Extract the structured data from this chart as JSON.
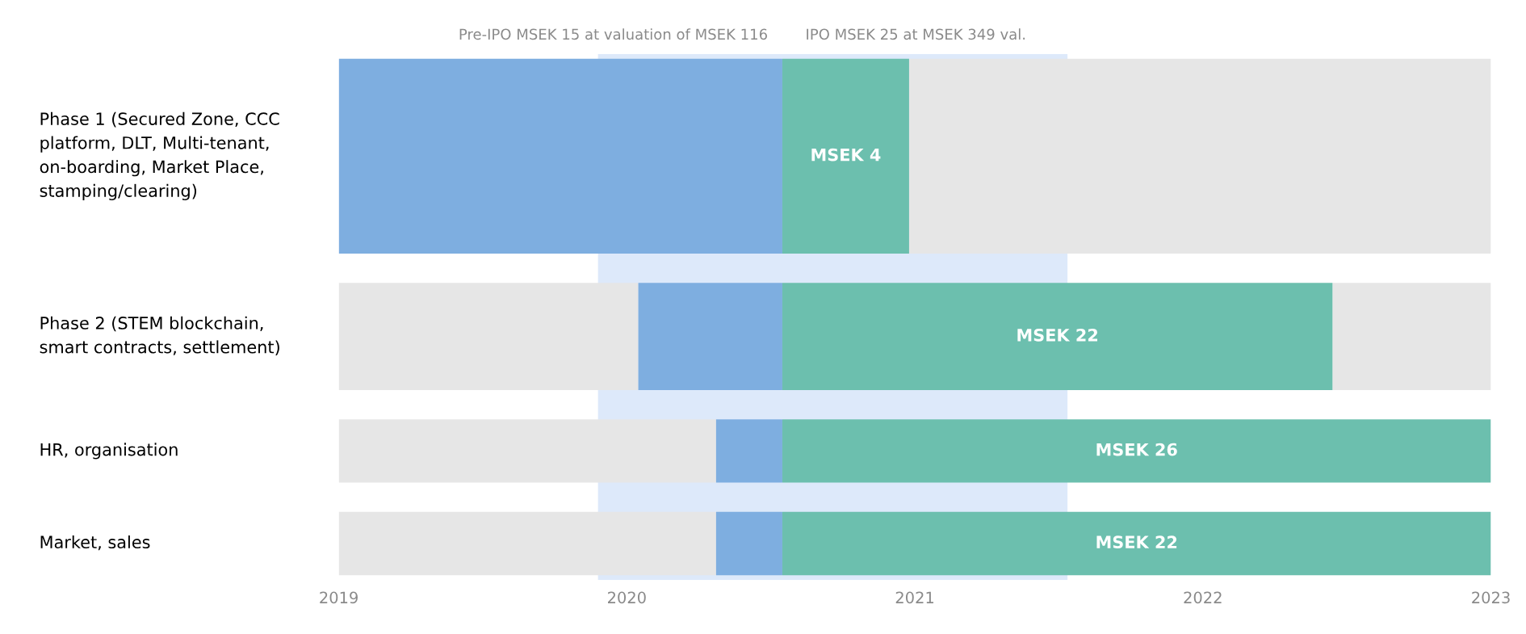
{
  "chart_data": {
    "type": "bar",
    "orientation": "horizontal",
    "categories": [
      "Phase 1 (Secured Zone, CCC\nplatform, DLT, Multi-tenant,\non-boarding, Market Place,\nstamping/clearing)",
      "Phase 2 (STEM blockchain,\nsmart contracts, settlement)",
      "HR, organisation",
      "Market, sales"
    ],
    "series": [
      {
        "color": "#e6e6e6",
        "base": [
          null,
          2019,
          2019,
          2019
        ],
        "values": [
          null,
          1.04,
          1.31,
          1.31
        ]
      },
      {
        "color": "#e6e6e6",
        "base": [
          2020.98,
          2022.45,
          null,
          null
        ],
        "values": [
          2.02,
          0.55,
          null,
          null
        ]
      },
      {
        "color": "#7eaee0",
        "base": [
          2019.0,
          2020.04,
          2020.31,
          2020.31
        ],
        "values": [
          1.54,
          0.5,
          0.23,
          0.23
        ]
      },
      {
        "color": "#6cbfae",
        "base": [
          2020.54,
          2020.54,
          2020.54,
          2020.54
        ],
        "values": [
          0.44,
          1.91,
          2.46,
          2.46
        ],
        "value_labels": [
          "MSEK 4",
          "MSEK 22",
          "MSEK 26",
          "MSEK 22"
        ]
      }
    ],
    "bands": [
      {
        "axis": "x",
        "from": 2019.9,
        "to": 2020.54,
        "label": "Pre-IPO MSEK 15 at valuation of MSEK 116",
        "color": "#dde9fa"
      },
      {
        "axis": "x",
        "from": 2020.54,
        "to": 2021.53,
        "label": "IPO MSEK 25 at MSEK 349 val.",
        "color": "#dde9fa"
      }
    ],
    "xlim": [
      2019,
      2023
    ],
    "xticks": [
      2019,
      2020,
      2021,
      2022,
      2023
    ],
    "grid": false,
    "legend": false
  }
}
